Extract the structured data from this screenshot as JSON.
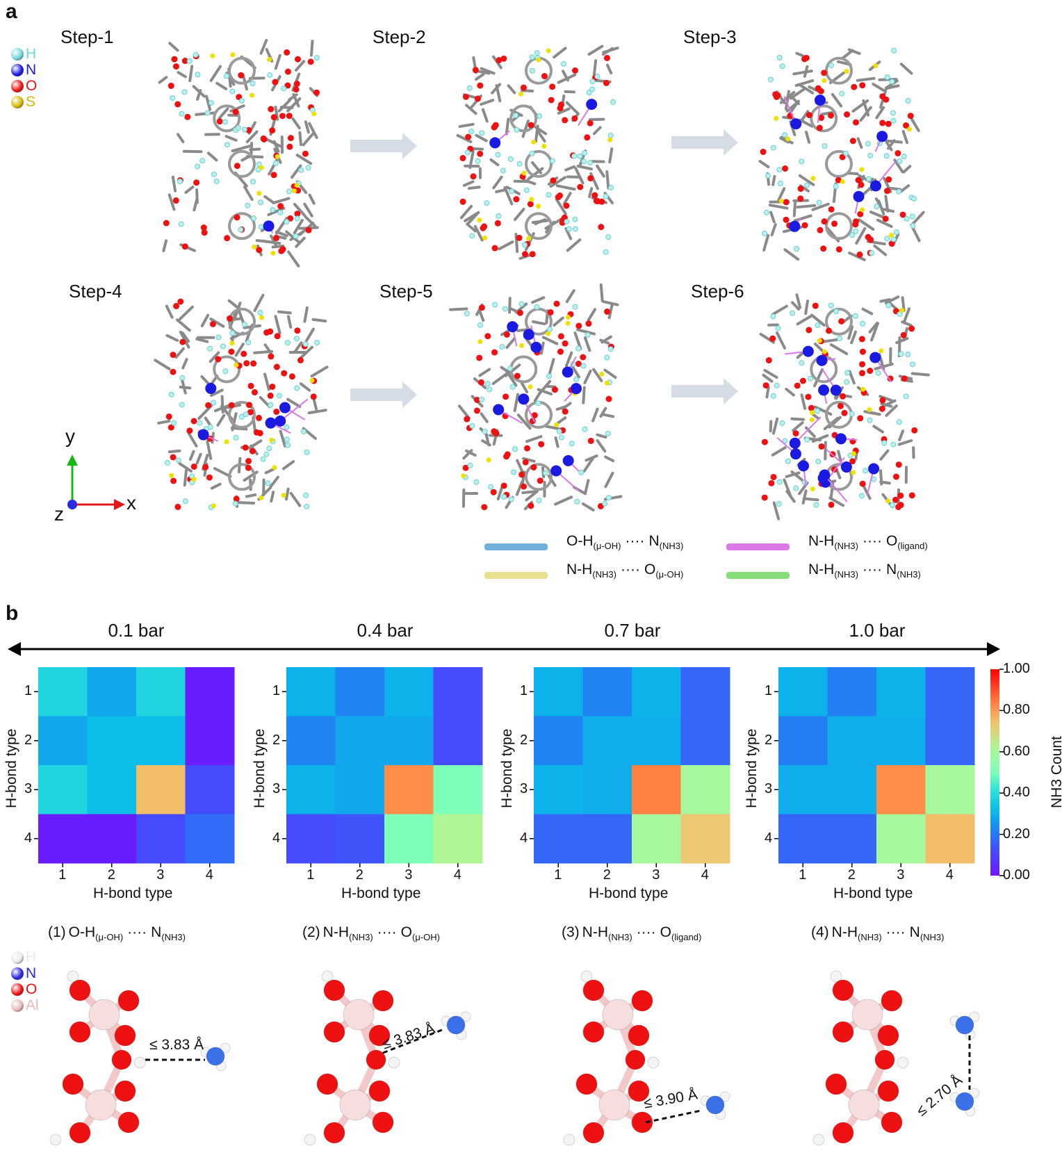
{
  "panel_a": {
    "label": "a",
    "steps": [
      "Step-1",
      "Step-2",
      "Step-3",
      "Step-4",
      "Step-5",
      "Step-6"
    ],
    "elements": [
      {
        "symbol": "H",
        "color": "#6fd6d8"
      },
      {
        "symbol": "N",
        "color": "#1a1ae0"
      },
      {
        "symbol": "O",
        "color": "#ee1111"
      },
      {
        "symbol": "S",
        "color": "#d4b800"
      }
    ],
    "axes": {
      "y": "y",
      "x": "x",
      "z": "z",
      "y_color": "#18b818",
      "x_color": "#e01818",
      "z_color": "#2a2ae0"
    },
    "hbond_legend": [
      {
        "donor": "O-H",
        "donor_sub": "(μ-OH)",
        "dots": "····",
        "acceptor": "N",
        "acceptor_sub": "(NH3)",
        "color": "#72b0dc"
      },
      {
        "donor": "N-H",
        "donor_sub": "(NH3)",
        "dots": "····",
        "acceptor": "O",
        "acceptor_sub": "(ligand)",
        "color": "#dc78e6"
      },
      {
        "donor": "N-H",
        "donor_sub": "(NH3)",
        "dots": "····",
        "acceptor": "O",
        "acceptor_sub": "(μ-OH)",
        "color": "#e8e08c"
      },
      {
        "donor": "N-H",
        "donor_sub": "(NH3)",
        "dots": "····",
        "acceptor": "N",
        "acceptor_sub": "(NH3)",
        "color": "#86dc78"
      }
    ]
  },
  "panel_b": {
    "label": "b",
    "colorbar": {
      "title": "NH3 Count",
      "ticks": [
        "1.00",
        "0.80",
        "0.60",
        "0.40",
        "0.20",
        "0.00"
      ],
      "range": [
        0,
        1
      ],
      "colormap": "rainbow (purple-blue-cyan-green-orange-red)"
    },
    "hbond_types": [
      {
        "num": "(1)",
        "donor": "O-H",
        "donor_sub": "(μ-OH)",
        "dots": "····",
        "acceptor": "N",
        "acceptor_sub": "(NH3)",
        "distance": "≤ 3.83 Å"
      },
      {
        "num": "(2)",
        "donor": "N-H",
        "donor_sub": "(NH3)",
        "dots": "····",
        "acceptor": "O",
        "acceptor_sub": "(μ-OH)",
        "distance": "≤ 3.83 Å"
      },
      {
        "num": "(3)",
        "donor": "N-H",
        "donor_sub": "(NH3)",
        "dots": "····",
        "acceptor": "O",
        "acceptor_sub": "(ligand)",
        "distance": "≤ 3.90 Å"
      },
      {
        "num": "(4)",
        "donor": "N-H",
        "donor_sub": "(NH3)",
        "dots": "····",
        "acceptor": "N",
        "acceptor_sub": "(NH3)",
        "distance": "≤ 2.70 Å"
      }
    ],
    "elements": [
      {
        "symbol": "H",
        "color": "#e8e8e8"
      },
      {
        "symbol": "N",
        "color": "#2a2ae0"
      },
      {
        "symbol": "O",
        "color": "#ee1111"
      },
      {
        "symbol": "Al",
        "color": "#e8b8b8"
      }
    ]
  },
  "chart_data": [
    {
      "type": "heatmap",
      "title": "0.1 bar",
      "xlabel": "H-bond type",
      "ylabel": "H-bond type",
      "x": [
        "1",
        "2",
        "3",
        "4"
      ],
      "y": [
        "1",
        "2",
        "3",
        "4"
      ],
      "zlim": [
        0,
        1
      ],
      "values": [
        [
          0.38,
          0.28,
          0.38,
          0.02
        ],
        [
          0.28,
          0.32,
          0.32,
          0.02
        ],
        [
          0.38,
          0.32,
          0.75,
          0.12
        ],
        [
          0.02,
          0.02,
          0.12,
          0.18
        ]
      ]
    },
    {
      "type": "heatmap",
      "title": "0.4 bar",
      "xlabel": "H-bond type",
      "ylabel": "H-bond type",
      "x": [
        "1",
        "2",
        "3",
        "4"
      ],
      "y": [
        "1",
        "2",
        "3",
        "4"
      ],
      "zlim": [
        0,
        1
      ],
      "values": [
        [
          0.3,
          0.22,
          0.3,
          0.12
        ],
        [
          0.22,
          0.28,
          0.28,
          0.12
        ],
        [
          0.3,
          0.28,
          0.82,
          0.5
        ],
        [
          0.12,
          0.14,
          0.5,
          0.62
        ]
      ]
    },
    {
      "type": "heatmap",
      "title": "0.7 bar",
      "xlabel": "H-bond type",
      "ylabel": "H-bond type",
      "x": [
        "1",
        "2",
        "3",
        "4"
      ],
      "y": [
        "1",
        "2",
        "3",
        "4"
      ],
      "zlim": [
        0,
        1
      ],
      "values": [
        [
          0.3,
          0.22,
          0.3,
          0.17
        ],
        [
          0.22,
          0.29,
          0.29,
          0.17
        ],
        [
          0.3,
          0.29,
          0.84,
          0.6
        ],
        [
          0.17,
          0.17,
          0.6,
          0.73
        ]
      ]
    },
    {
      "type": "heatmap",
      "title": "1.0 bar",
      "xlabel": "H-bond type",
      "ylabel": "H-bond type",
      "x": [
        "1",
        "2",
        "3",
        "4"
      ],
      "y": [
        "1",
        "2",
        "3",
        "4"
      ],
      "zlim": [
        0,
        1
      ],
      "values": [
        [
          0.3,
          0.21,
          0.3,
          0.17
        ],
        [
          0.21,
          0.29,
          0.29,
          0.17
        ],
        [
          0.29,
          0.29,
          0.82,
          0.6
        ],
        [
          0.17,
          0.17,
          0.6,
          0.75
        ]
      ]
    }
  ]
}
